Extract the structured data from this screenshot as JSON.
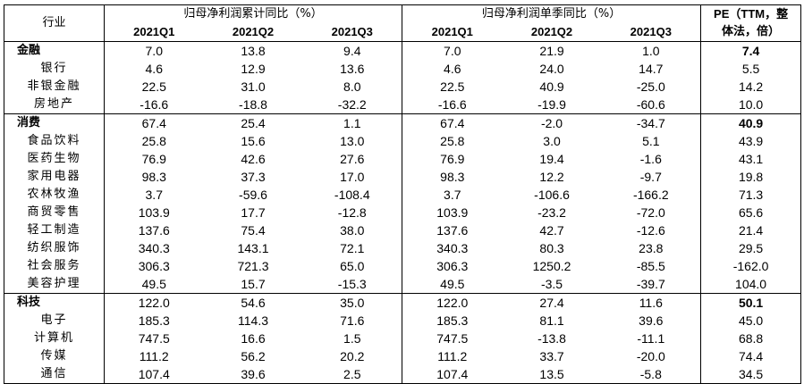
{
  "header": {
    "industry": "行业",
    "cumulative": "归母净利润累计同比（%）",
    "single": "归母净利润单季同比（%）",
    "pe_line1": "PE（TTM，整",
    "pe_line2": "体法，倍）",
    "quarters": [
      "2021Q1",
      "2021Q2",
      "2021Q3"
    ]
  },
  "rows": [
    {
      "name": "金融",
      "group": true,
      "cum": [
        "7.0",
        "13.8",
        "9.4"
      ],
      "sq": [
        "7.0",
        "21.9",
        "1.0"
      ],
      "pe": "7.4"
    },
    {
      "name": "银行",
      "group": false,
      "cum": [
        "4.6",
        "12.9",
        "13.6"
      ],
      "sq": [
        "4.6",
        "24.0",
        "14.7"
      ],
      "pe": "5.5"
    },
    {
      "name": "非银金融",
      "group": false,
      "cum": [
        "22.5",
        "31.0",
        "8.0"
      ],
      "sq": [
        "22.5",
        "40.9",
        "-25.0"
      ],
      "pe": "14.2"
    },
    {
      "name": "房地产",
      "group": false,
      "cum": [
        "-16.6",
        "-18.8",
        "-32.2"
      ],
      "sq": [
        "-16.6",
        "-19.9",
        "-60.6"
      ],
      "pe": "10.0"
    },
    {
      "name": "消费",
      "group": true,
      "cum": [
        "67.4",
        "25.4",
        "1.1"
      ],
      "sq": [
        "67.4",
        "-2.0",
        "-34.7"
      ],
      "pe": "40.9"
    },
    {
      "name": "食品饮料",
      "group": false,
      "cum": [
        "25.8",
        "15.6",
        "13.0"
      ],
      "sq": [
        "25.8",
        "3.0",
        "5.1"
      ],
      "pe": "43.9"
    },
    {
      "name": "医药生物",
      "group": false,
      "cum": [
        "76.9",
        "42.6",
        "27.6"
      ],
      "sq": [
        "76.9",
        "19.4",
        "-1.6"
      ],
      "pe": "43.1"
    },
    {
      "name": "家用电器",
      "group": false,
      "cum": [
        "98.3",
        "37.3",
        "17.0"
      ],
      "sq": [
        "98.3",
        "12.2",
        "-9.7"
      ],
      "pe": "19.8"
    },
    {
      "name": "农林牧渔",
      "group": false,
      "cum": [
        "3.7",
        "-59.6",
        "-108.4"
      ],
      "sq": [
        "3.7",
        "-106.6",
        "-166.2"
      ],
      "pe": "71.3"
    },
    {
      "name": "商贸零售",
      "group": false,
      "cum": [
        "103.9",
        "17.7",
        "-12.8"
      ],
      "sq": [
        "103.9",
        "-23.2",
        "-72.0"
      ],
      "pe": "65.6"
    },
    {
      "name": "轻工制造",
      "group": false,
      "cum": [
        "137.6",
        "75.4",
        "38.0"
      ],
      "sq": [
        "137.6",
        "42.7",
        "-12.6"
      ],
      "pe": "21.4"
    },
    {
      "name": "纺织服饰",
      "group": false,
      "cum": [
        "340.3",
        "143.1",
        "72.1"
      ],
      "sq": [
        "340.3",
        "80.3",
        "23.8"
      ],
      "pe": "29.5"
    },
    {
      "name": "社会服务",
      "group": false,
      "cum": [
        "306.3",
        "721.3",
        "65.0"
      ],
      "sq": [
        "306.3",
        "1250.2",
        "-85.5"
      ],
      "pe": "-162.0"
    },
    {
      "name": "美容护理",
      "group": false,
      "cum": [
        "49.5",
        "15.7",
        "-15.3"
      ],
      "sq": [
        "49.5",
        "-3.5",
        "-39.7"
      ],
      "pe": "104.0"
    },
    {
      "name": "科技",
      "group": true,
      "cum": [
        "122.0",
        "54.6",
        "35.0"
      ],
      "sq": [
        "122.0",
        "27.4",
        "11.6"
      ],
      "pe": "50.1"
    },
    {
      "name": "电子",
      "group": false,
      "cum": [
        "185.3",
        "114.3",
        "71.6"
      ],
      "sq": [
        "185.3",
        "81.1",
        "39.6"
      ],
      "pe": "45.0"
    },
    {
      "name": "计算机",
      "group": false,
      "cum": [
        "747.5",
        "16.6",
        "1.5"
      ],
      "sq": [
        "747.5",
        "-13.8",
        "-11.1"
      ],
      "pe": "68.8"
    },
    {
      "name": "传媒",
      "group": false,
      "cum": [
        "111.2",
        "56.2",
        "20.2"
      ],
      "sq": [
        "111.2",
        "33.7",
        "-20.0"
      ],
      "pe": "74.4"
    },
    {
      "name": "通信",
      "group": false,
      "cum": [
        "107.4",
        "39.6",
        "2.5"
      ],
      "sq": [
        "107.4",
        "13.5",
        "-5.8"
      ],
      "pe": "34.5"
    }
  ]
}
